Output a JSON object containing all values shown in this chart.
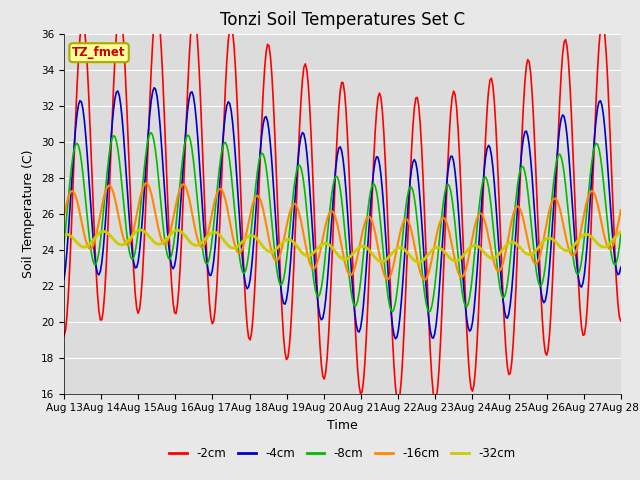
{
  "title": "Tonzi Soil Temperatures Set C",
  "xlabel": "Time",
  "ylabel": "Soil Temperature (C)",
  "ylim": [
    16,
    36
  ],
  "xlim": [
    0,
    15
  ],
  "yticks": [
    16,
    18,
    20,
    22,
    24,
    26,
    28,
    30,
    32,
    34,
    36
  ],
  "x_tick_labels": [
    "Aug 13",
    "Aug 14",
    "Aug 15",
    "Aug 16",
    "Aug 17",
    "Aug 18",
    "Aug 19",
    "Aug 20",
    "Aug 21",
    "Aug 22",
    "Aug 23",
    "Aug 24",
    "Aug 25",
    "Aug 26",
    "Aug 27",
    "Aug 28"
  ],
  "line_colors": [
    "#ff0000",
    "#0000cc",
    "#00bb00",
    "#ff8800",
    "#cccc00"
  ],
  "line_labels": [
    "-2cm",
    "-4cm",
    "-8cm",
    "-16cm",
    "-32cm"
  ],
  "line_widths": [
    1.2,
    1.2,
    1.2,
    1.5,
    2.0
  ],
  "bg_color": "#dcdcdc",
  "fig_color": "#e8e8e8",
  "annotation_text": "TZ_fmet",
  "annotation_color": "#cc0000",
  "annotation_bg": "#ffff99",
  "annotation_border": "#aaaa00",
  "grid_color": "#ffffff",
  "title_fontsize": 12,
  "label_fontsize": 9,
  "tick_fontsize": 7.5
}
